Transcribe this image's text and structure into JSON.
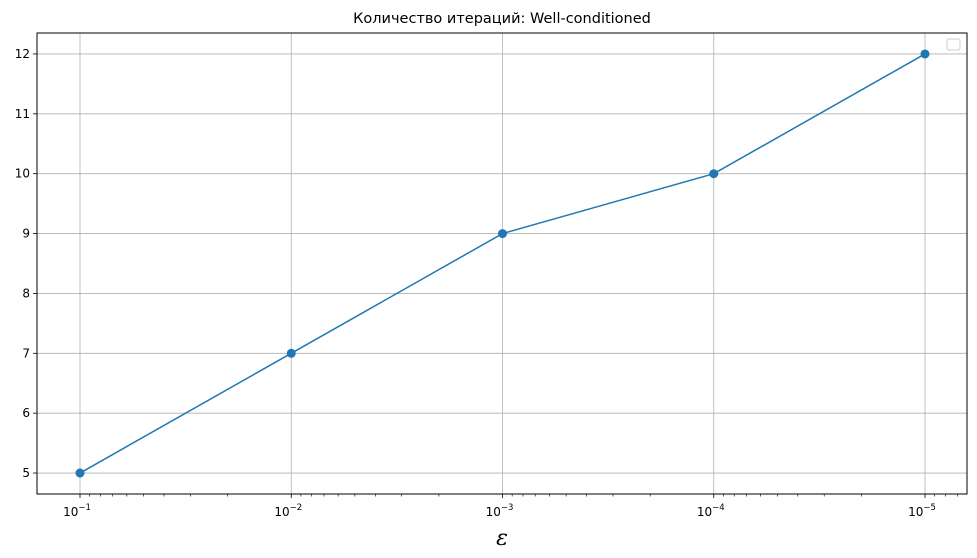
{
  "chart_data": {
    "type": "line",
    "title": "Количество итераций: Well-conditioned",
    "xlabel": "ε",
    "ylabel": "",
    "x_scale": "log",
    "x_inverted": true,
    "x": [
      0.1,
      0.01,
      0.001,
      0.0001,
      1e-05
    ],
    "series": [
      {
        "values": [
          5,
          7,
          9,
          10,
          12
        ],
        "color": "#1f77b4",
        "marker": "circle"
      }
    ],
    "x_ticks": [
      {
        "base": "10",
        "exp": "−1"
      },
      {
        "base": "10",
        "exp": "−2"
      },
      {
        "base": "10",
        "exp": "−3"
      },
      {
        "base": "10",
        "exp": "−4"
      },
      {
        "base": "10",
        "exp": "−5"
      }
    ],
    "y_ticks": [
      "5",
      "6",
      "7",
      "8",
      "9",
      "10",
      "11",
      "12"
    ],
    "ylim": [
      4.65,
      12.35
    ],
    "grid": true,
    "legend": {
      "position": "top-right",
      "entries": []
    }
  }
}
